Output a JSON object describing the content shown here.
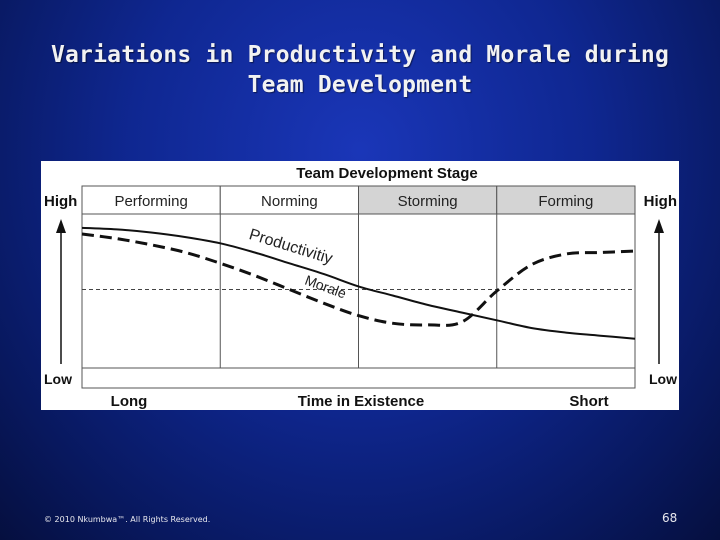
{
  "slide": {
    "title_line1": "Variations in Productivity and Morale during",
    "title_line2": "Team Development",
    "footer": "© 2010 Nkumbwa™. All Rights Reserved.",
    "page_number": "68"
  },
  "colors": {
    "background": "#0f2791",
    "storming_fill": "#d4d4d4",
    "forming_fill": "#d4d4d4",
    "line": "#111111"
  },
  "chart_data": {
    "type": "line",
    "title": "Team Development Stage",
    "xlabel": "Time in Existence",
    "x_start_label": "Long",
    "x_end_label": "Short",
    "y_high_label": "High",
    "y_low_label": "Low",
    "stages": [
      {
        "label": "Performing",
        "shaded": false
      },
      {
        "label": "Norming",
        "shaded": false
      },
      {
        "label": "Storming",
        "shaded": true
      },
      {
        "label": "Forming",
        "shaded": true
      }
    ],
    "x": [
      0,
      0.25,
      0.5,
      0.75,
      1,
      1.25,
      1.5,
      1.75,
      2,
      2.25,
      2.5,
      2.75,
      3,
      3.25,
      3.5,
      3.75,
      4
    ],
    "ylim": [
      0,
      1
    ],
    "reference_level": 0.51,
    "series": [
      {
        "name": "Productivitiy",
        "style": "solid",
        "values": [
          0.91,
          0.9,
          0.88,
          0.85,
          0.81,
          0.75,
          0.68,
          0.61,
          0.53,
          0.47,
          0.41,
          0.36,
          0.31,
          0.26,
          0.23,
          0.21,
          0.19
        ]
      },
      {
        "name": "Morale",
        "style": "dashed",
        "values": [
          0.87,
          0.84,
          0.8,
          0.75,
          0.68,
          0.6,
          0.51,
          0.42,
          0.34,
          0.29,
          0.28,
          0.3,
          0.5,
          0.67,
          0.74,
          0.75,
          0.76
        ]
      }
    ]
  }
}
